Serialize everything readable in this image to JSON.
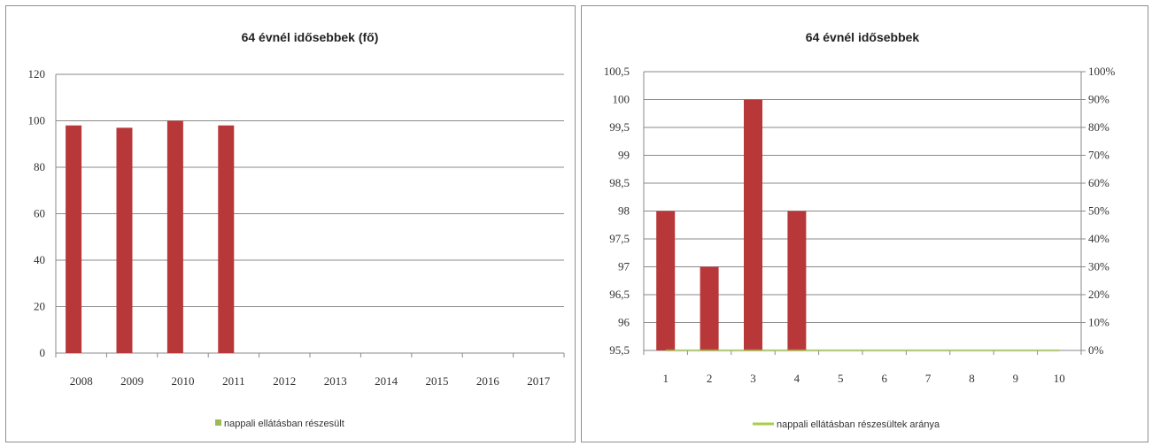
{
  "colors": {
    "bar": "#b8383a",
    "line": "#aacd48",
    "legend_marker_left": "#9bbb59",
    "grid": "#8a8a8a",
    "axis": "#8a8a8a"
  },
  "chart_data": [
    {
      "type": "bar",
      "title": "64 évnél idősebbek (fő)",
      "categories": [
        "2008",
        "2009",
        "2010",
        "2011",
        "2012",
        "2013",
        "2014",
        "2015",
        "2016",
        "2017"
      ],
      "series": [
        {
          "values": [
            98,
            97,
            100,
            98,
            null,
            null,
            null,
            null,
            null,
            null
          ]
        },
        {
          "name": "nappali ellátásban részesült",
          "values": [
            0,
            0,
            0,
            0,
            0,
            0,
            0,
            0,
            0,
            0
          ]
        }
      ],
      "yticks": [
        "0",
        "20",
        "40",
        "60",
        "80",
        "100",
        "120"
      ],
      "ylim": [
        0,
        120
      ],
      "legend": "bottom",
      "grid": true
    },
    {
      "type": "bar",
      "title": "64 évnél idősebbek",
      "categories": [
        "1",
        "2",
        "3",
        "4",
        "5",
        "6",
        "7",
        "8",
        "9",
        "10"
      ],
      "series": [
        {
          "values": [
            98,
            97,
            100,
            98,
            null,
            null,
            null,
            null,
            null,
            null
          ]
        },
        {
          "name": "nappali ellátásban részesültek aránya",
          "type": "line",
          "axis": "secondary",
          "values": [
            0,
            0,
            0,
            0,
            0,
            0,
            0,
            0,
            0,
            0
          ]
        }
      ],
      "yticks": [
        "95,5",
        "96",
        "96,5",
        "97",
        "97,5",
        "98",
        "98,5",
        "99",
        "99,5",
        "100",
        "100,5"
      ],
      "ylim": [
        95.5,
        100.5
      ],
      "y2ticks": [
        "0%",
        "10%",
        "20%",
        "30%",
        "40%",
        "50%",
        "60%",
        "70%",
        "80%",
        "90%",
        "100%"
      ],
      "y2lim": [
        0,
        1
      ],
      "legend": "bottom",
      "grid": true
    }
  ]
}
